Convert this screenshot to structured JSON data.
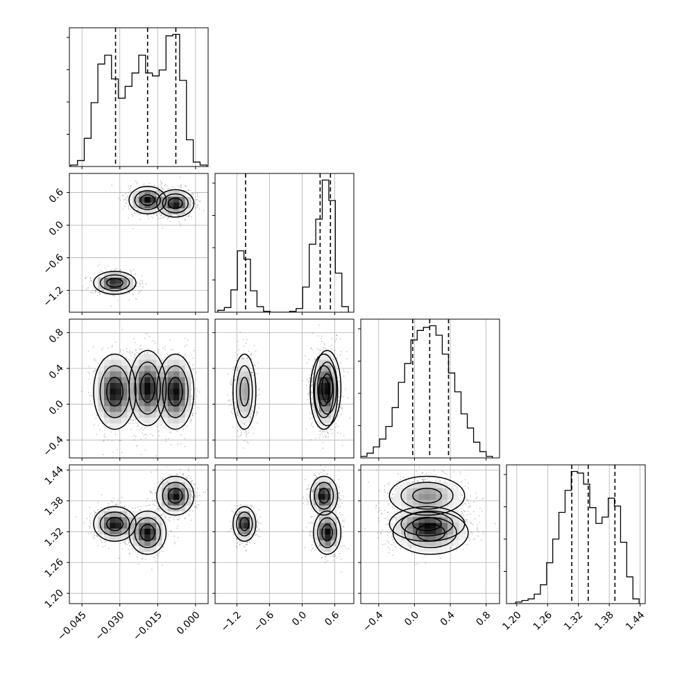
{
  "chart_data": {
    "type": "corner",
    "title": "",
    "grid": true,
    "parameters": [
      {
        "range": [
          -0.05,
          0.005
        ],
        "ticks": [
          "−0.045",
          "−0.030",
          "−0.015",
          "0.000"
        ],
        "tick_values": [
          -0.045,
          -0.03,
          -0.015,
          0.0
        ],
        "quantiles": [
          -0.0317,
          -0.019,
          -0.0078
        ]
      },
      {
        "range": [
          -1.6,
          0.95
        ],
        "ticks": [
          "−1.2",
          "−0.6",
          "0.0",
          "0.6"
        ],
        "tick_values": [
          -1.2,
          -0.6,
          0.0,
          0.6
        ],
        "quantiles": [
          -1.04,
          0.33,
          0.52
        ]
      },
      {
        "range": [
          -0.6,
          0.95
        ],
        "ticks": [
          "−0.4",
          "0.0",
          "0.4",
          "0.8"
        ],
        "tick_values": [
          -0.4,
          0.0,
          0.4,
          0.8
        ],
        "quantiles": [
          -0.02,
          0.17,
          0.38
        ]
      },
      {
        "range": [
          1.18,
          1.45
        ],
        "ticks": [
          "1.20",
          "1.26",
          "1.32",
          "1.38",
          "1.44"
        ],
        "tick_values": [
          1.2,
          1.26,
          1.32,
          1.38,
          1.44
        ],
        "quantiles": [
          1.307,
          1.339,
          1.391
        ]
      }
    ],
    "histograms": [
      {
        "param": 0,
        "edges": [
          -0.0495,
          -0.0468,
          -0.0441,
          -0.0414,
          -0.0387,
          -0.036,
          -0.0333,
          -0.0306,
          -0.0279,
          -0.0252,
          -0.0225,
          -0.0198,
          -0.0171,
          -0.0144,
          -0.0117,
          -0.009,
          -0.0063,
          -0.0036,
          -0.0009,
          0.0018,
          0.0045
        ],
        "counts": [
          1,
          4,
          19,
          43,
          69,
          75,
          59,
          46,
          54,
          63,
          75,
          63,
          61,
          65,
          88,
          89,
          58,
          18,
          3,
          1
        ]
      },
      {
        "param": 1,
        "edges": [
          -1.55,
          -1.43,
          -1.31,
          -1.19,
          -1.07,
          -0.95,
          -0.83,
          -0.71,
          -0.59,
          -0.47,
          -0.35,
          -0.23,
          -0.11,
          0.01,
          0.13,
          0.25,
          0.37,
          0.49,
          0.61,
          0.73,
          0.85
        ],
        "counts": [
          2,
          5,
          24,
          66,
          57,
          23,
          6,
          1,
          0,
          0,
          0,
          1,
          4,
          27,
          73,
          100,
          142,
          120,
          42,
          6
        ]
      },
      {
        "param": 2,
        "edges": [
          -0.6,
          -0.53,
          -0.46,
          -0.39,
          -0.32,
          -0.25,
          -0.18,
          -0.11,
          -0.04,
          0.03,
          0.1,
          0.17,
          0.24,
          0.31,
          0.38,
          0.45,
          0.52,
          0.59,
          0.66,
          0.73,
          0.8,
          0.87
        ],
        "counts": [
          1,
          3,
          7,
          12,
          20,
          32,
          48,
          60,
          75,
          81,
          83,
          84,
          78,
          66,
          54,
          42,
          28,
          19,
          10,
          4,
          1
        ]
      },
      {
        "param": 3,
        "edges": [
          1.186,
          1.198,
          1.21,
          1.222,
          1.234,
          1.246,
          1.258,
          1.27,
          1.282,
          1.294,
          1.306,
          1.318,
          1.33,
          1.342,
          1.354,
          1.366,
          1.378,
          1.39,
          1.402,
          1.414,
          1.426,
          1.438
        ],
        "counts": [
          0,
          1,
          2,
          3,
          6,
          12,
          26,
          41,
          58,
          72,
          84,
          83,
          76,
          61,
          51,
          55,
          67,
          62,
          39,
          17,
          3
        ]
      }
    ],
    "clusters": [
      {
        "center": [
          -0.032,
          -1.06,
          0.14,
          1.335
        ],
        "spread": [
          0.004,
          0.1,
          0.2,
          0.016
        ],
        "weight": 1.0
      },
      {
        "center": [
          -0.019,
          0.46,
          0.18,
          1.318
        ],
        "spread": [
          0.0035,
          0.12,
          0.2,
          0.02
        ],
        "weight": 1.0
      },
      {
        "center": [
          -0.008,
          0.4,
          0.14,
          1.39
        ],
        "spread": [
          0.0035,
          0.12,
          0.2,
          0.018
        ],
        "weight": 1.0
      }
    ]
  }
}
